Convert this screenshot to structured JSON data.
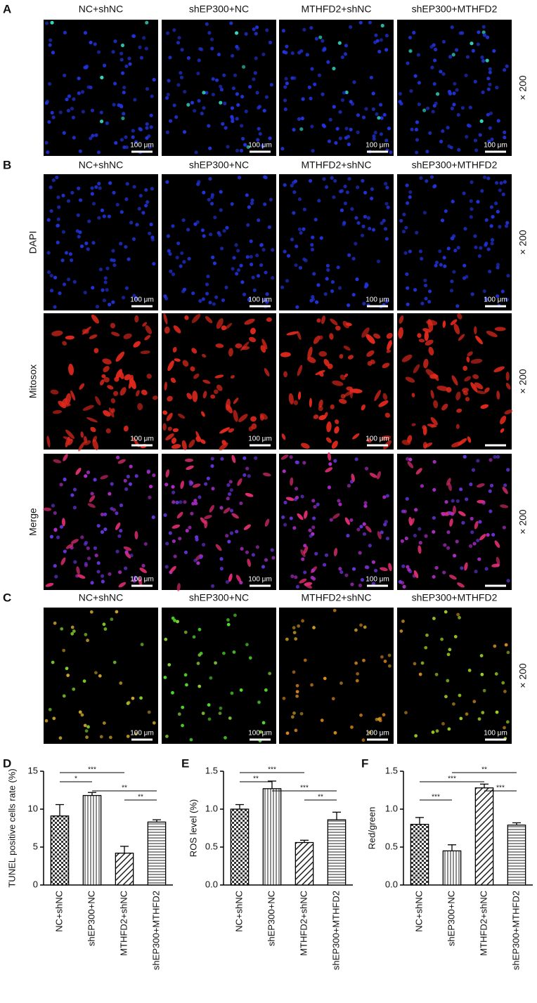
{
  "panels": [
    {
      "letter": "A",
      "column_headers": [
        "NC+shNC",
        "shEP300+NC",
        "MTHFD2+shNC",
        "shEP300+MTHFD2"
      ],
      "rows": [
        {
          "magnification": "× 200",
          "scale_bar_labels": [
            "100 μm",
            "100 μm",
            "100 μm",
            "100 μm"
          ]
        }
      ]
    },
    {
      "letter": "B",
      "column_headers": [
        "NC+shNC",
        "shEP300+NC",
        "MTHFD2+shNC",
        "shEP300+MTHFD2"
      ],
      "rows": [
        {
          "label": "DAPI",
          "magnification": "× 200",
          "scale_bar_labels": [
            "100 μm",
            "100 μm",
            "100 μm",
            "100 μm"
          ]
        },
        {
          "label": "Mitosox",
          "magnification": "× 200",
          "scale_bar_labels": [
            "100 μm",
            "100 μm",
            "100 μm"
          ]
        },
        {
          "label": "Merge",
          "magnification": "× 200",
          "scale_bar_labels": [
            "100 μm",
            "100 μm",
            "100 μm"
          ]
        }
      ]
    },
    {
      "letter": "C",
      "column_headers": [
        "NC+shNC",
        "shEP300+NC",
        "MTHFD2+shNC",
        "shEP300+MTHFD2"
      ],
      "rows": [
        {
          "magnification": "× 200",
          "scale_bar_labels": [
            "100 μm",
            "100 μm",
            "100 μm",
            "100 μm"
          ]
        }
      ]
    }
  ],
  "chart_data": [
    {
      "type": "bar",
      "letter": "D",
      "y_label": "TUNEL positive cells rate (%)",
      "categories": [
        "NC+shNC",
        "shEP300+NC",
        "MTHFD2+shNC",
        "shEP300+MTHFD2"
      ],
      "values": [
        9.1,
        11.8,
        4.2,
        8.3
      ],
      "errors": [
        1.5,
        0.4,
        0.9,
        0.3
      ],
      "ylim": [
        0,
        15
      ],
      "yticks": [
        0,
        5,
        10,
        15
      ],
      "comparisons": [
        {
          "groups": [
            0,
            2
          ],
          "label": "***"
        },
        {
          "groups": [
            0,
            1
          ],
          "label": "*"
        },
        {
          "groups": [
            1,
            3
          ],
          "label": "**"
        },
        {
          "groups": [
            2,
            3
          ],
          "label": "**"
        }
      ]
    },
    {
      "type": "bar",
      "letter": "E",
      "y_label": "ROS level (%)",
      "categories": [
        "NC+shNC",
        "shEP300+NC",
        "MTHFD2+shNC",
        "shEP300+MTHFD2"
      ],
      "values": [
        1.0,
        1.27,
        0.56,
        0.86
      ],
      "errors": [
        0.06,
        0.1,
        0.03,
        0.1
      ],
      "ylim": [
        0,
        1.5
      ],
      "yticks": [
        {
          "value": 0,
          "label": "0.0"
        },
        {
          "value": 0.5,
          "label": "0.5"
        },
        {
          "value": 1,
          "label": "1.0"
        },
        {
          "value": 1.5,
          "label": "1.5"
        }
      ],
      "comparisons": [
        {
          "groups": [
            0,
            2
          ],
          "label": "***"
        },
        {
          "groups": [
            0,
            1
          ],
          "label": "**"
        },
        {
          "groups": [
            1,
            3
          ],
          "label": "***"
        },
        {
          "groups": [
            2,
            3
          ],
          "label": "**"
        }
      ]
    },
    {
      "type": "bar",
      "letter": "F",
      "y_label": "Red/green",
      "categories": [
        "NC+shNC",
        "shEP300+NC",
        "MTHFD2+shNC",
        "shEP300+MTHFD2"
      ],
      "values": [
        0.8,
        0.45,
        1.28,
        0.79
      ],
      "errors": [
        0.09,
        0.08,
        0.05,
        0.03
      ],
      "ylim": [
        0,
        1.5
      ],
      "yticks": [
        {
          "value": 0,
          "label": "0.0"
        },
        {
          "value": 0.5,
          "label": "0.5"
        },
        {
          "value": 1,
          "label": "1.0"
        },
        {
          "value": 1.5,
          "label": "1.5"
        }
      ],
      "comparisons": [
        {
          "groups": [
            1,
            3
          ],
          "label": "**"
        },
        {
          "groups": [
            0,
            2
          ],
          "label": "***"
        },
        {
          "groups": [
            2,
            3
          ],
          "label": "***"
        },
        {
          "groups": [
            0,
            1
          ],
          "label": "***"
        }
      ]
    }
  ]
}
